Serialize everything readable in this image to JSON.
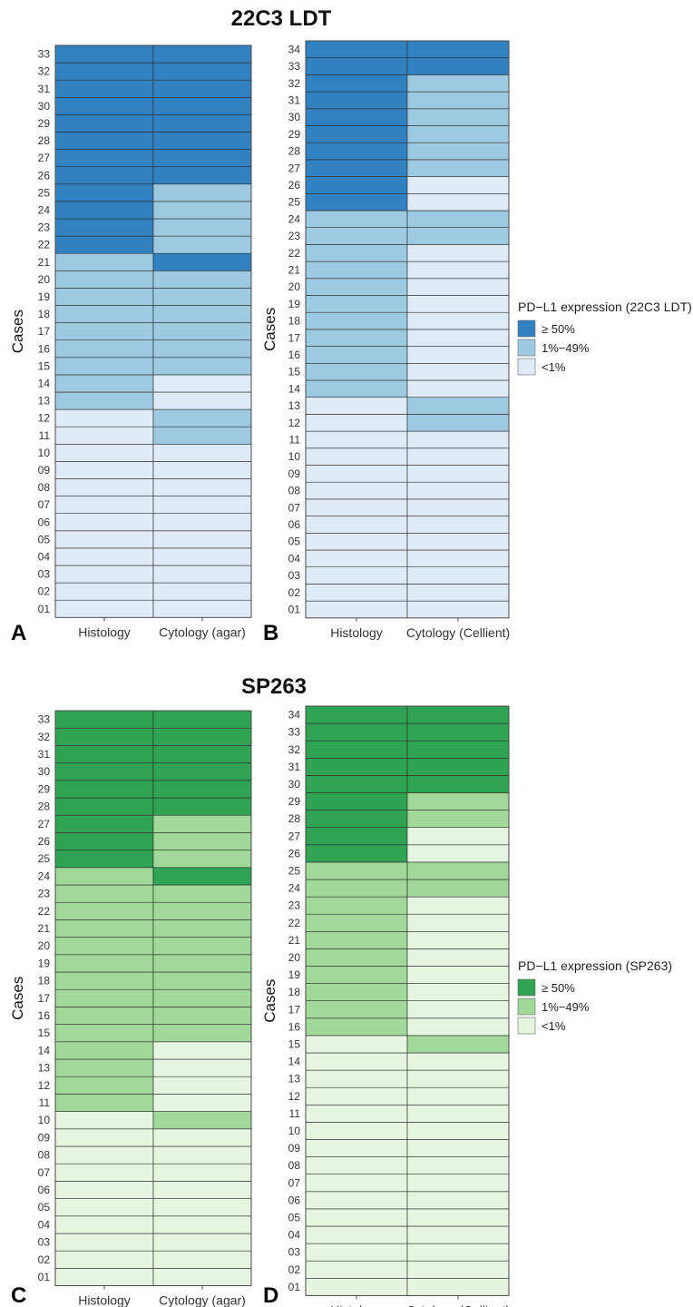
{
  "figure": {
    "title_top": "22C3 LDT",
    "title_bottom": "SP263"
  },
  "legends": [
    {
      "title": "PD−L1 expression (22C3 LDT)",
      "items": [
        {
          "label": "≥ 50%",
          "color": "#3282c2"
        },
        {
          "label": "1%−49%",
          "color": "#9ecae1"
        },
        {
          "label": "<1%",
          "color": "#deebf7"
        }
      ]
    },
    {
      "title": "PD−L1 expression (SP263)",
      "items": [
        {
          "label": "≥ 50%",
          "color": "#31a354"
        },
        {
          "label": "1%−49%",
          "color": "#a1d99b"
        },
        {
          "label": "<1%",
          "color": "#e5f5e0"
        }
      ]
    }
  ],
  "chart_data": [
    {
      "type": "heatmap",
      "panel": "A",
      "ylabel": "Cases",
      "columns": [
        "Histology",
        "Cytology (agar)"
      ],
      "rows": [
        "01",
        "02",
        "03",
        "04",
        "05",
        "06",
        "07",
        "08",
        "09",
        "10",
        "11",
        "12",
        "13",
        "14",
        "15",
        "16",
        "17",
        "18",
        "19",
        "20",
        "21",
        "22",
        "23",
        "24",
        "25",
        "26",
        "27",
        "28",
        "29",
        "30",
        "31",
        "32",
        "33"
      ],
      "palette": [
        "#deebf7",
        "#9ecae1",
        "#3282c2"
      ],
      "categories": [
        "<1%",
        "1%−49%",
        "≥ 50%"
      ],
      "values": [
        [
          0,
          0
        ],
        [
          0,
          0
        ],
        [
          0,
          0
        ],
        [
          0,
          0
        ],
        [
          0,
          0
        ],
        [
          0,
          0
        ],
        [
          0,
          0
        ],
        [
          0,
          0
        ],
        [
          0,
          0
        ],
        [
          0,
          0
        ],
        [
          0,
          1
        ],
        [
          0,
          1
        ],
        [
          1,
          0
        ],
        [
          1,
          0
        ],
        [
          1,
          1
        ],
        [
          1,
          1
        ],
        [
          1,
          1
        ],
        [
          1,
          1
        ],
        [
          1,
          1
        ],
        [
          1,
          1
        ],
        [
          1,
          2
        ],
        [
          2,
          1
        ],
        [
          2,
          1
        ],
        [
          2,
          1
        ],
        [
          2,
          1
        ],
        [
          2,
          2
        ],
        [
          2,
          2
        ],
        [
          2,
          2
        ],
        [
          2,
          2
        ],
        [
          2,
          2
        ],
        [
          2,
          2
        ],
        [
          2,
          2
        ],
        [
          2,
          2
        ]
      ]
    },
    {
      "type": "heatmap",
      "panel": "B",
      "ylabel": "Cases",
      "columns": [
        "Histology",
        "Cytology (Cellient)"
      ],
      "rows": [
        "01",
        "02",
        "03",
        "04",
        "05",
        "06",
        "07",
        "08",
        "09",
        "10",
        "11",
        "12",
        "13",
        "14",
        "15",
        "16",
        "17",
        "18",
        "19",
        "20",
        "21",
        "22",
        "23",
        "24",
        "25",
        "26",
        "27",
        "28",
        "29",
        "30",
        "31",
        "32",
        "33",
        "34"
      ],
      "palette": [
        "#deebf7",
        "#9ecae1",
        "#3282c2"
      ],
      "categories": [
        "<1%",
        "1%−49%",
        "≥ 50%"
      ],
      "values": [
        [
          0,
          0
        ],
        [
          0,
          0
        ],
        [
          0,
          0
        ],
        [
          0,
          0
        ],
        [
          0,
          0
        ],
        [
          0,
          0
        ],
        [
          0,
          0
        ],
        [
          0,
          0
        ],
        [
          0,
          0
        ],
        [
          0,
          0
        ],
        [
          0,
          0
        ],
        [
          0,
          1
        ],
        [
          0,
          1
        ],
        [
          1,
          0
        ],
        [
          1,
          0
        ],
        [
          1,
          0
        ],
        [
          1,
          0
        ],
        [
          1,
          0
        ],
        [
          1,
          0
        ],
        [
          1,
          0
        ],
        [
          1,
          0
        ],
        [
          1,
          0
        ],
        [
          1,
          1
        ],
        [
          1,
          1
        ],
        [
          2,
          0
        ],
        [
          2,
          0
        ],
        [
          2,
          1
        ],
        [
          2,
          1
        ],
        [
          2,
          1
        ],
        [
          2,
          1
        ],
        [
          2,
          1
        ],
        [
          2,
          1
        ],
        [
          2,
          2
        ],
        [
          2,
          2
        ]
      ]
    },
    {
      "type": "heatmap",
      "panel": "C",
      "ylabel": "Cases",
      "columns": [
        "Histology",
        "Cytology (agar)"
      ],
      "rows": [
        "01",
        "02",
        "03",
        "04",
        "05",
        "06",
        "07",
        "08",
        "09",
        "10",
        "11",
        "12",
        "13",
        "14",
        "15",
        "16",
        "17",
        "18",
        "19",
        "20",
        "21",
        "22",
        "23",
        "24",
        "25",
        "26",
        "27",
        "28",
        "29",
        "30",
        "31",
        "32",
        "33"
      ],
      "palette": [
        "#e5f5e0",
        "#a1d99b",
        "#31a354"
      ],
      "categories": [
        "<1%",
        "1%−49%",
        "≥ 50%"
      ],
      "values": [
        [
          0,
          0
        ],
        [
          0,
          0
        ],
        [
          0,
          0
        ],
        [
          0,
          0
        ],
        [
          0,
          0
        ],
        [
          0,
          0
        ],
        [
          0,
          0
        ],
        [
          0,
          0
        ],
        [
          0,
          0
        ],
        [
          0,
          1
        ],
        [
          1,
          0
        ],
        [
          1,
          0
        ],
        [
          1,
          0
        ],
        [
          1,
          0
        ],
        [
          1,
          1
        ],
        [
          1,
          1
        ],
        [
          1,
          1
        ],
        [
          1,
          1
        ],
        [
          1,
          1
        ],
        [
          1,
          1
        ],
        [
          1,
          1
        ],
        [
          1,
          1
        ],
        [
          1,
          1
        ],
        [
          1,
          2
        ],
        [
          2,
          1
        ],
        [
          2,
          1
        ],
        [
          2,
          1
        ],
        [
          2,
          2
        ],
        [
          2,
          2
        ],
        [
          2,
          2
        ],
        [
          2,
          2
        ],
        [
          2,
          2
        ],
        [
          2,
          2
        ]
      ]
    },
    {
      "type": "heatmap",
      "panel": "D",
      "ylabel": "Cases",
      "columns": [
        "Histology",
        "Cytology (Cellient)"
      ],
      "rows": [
        "01",
        "02",
        "03",
        "04",
        "05",
        "06",
        "07",
        "08",
        "09",
        "10",
        "11",
        "12",
        "13",
        "14",
        "15",
        "16",
        "17",
        "18",
        "19",
        "20",
        "21",
        "22",
        "23",
        "24",
        "25",
        "26",
        "27",
        "28",
        "29",
        "30",
        "31",
        "32",
        "33",
        "34"
      ],
      "palette": [
        "#e5f5e0",
        "#a1d99b",
        "#31a354"
      ],
      "categories": [
        "<1%",
        "1%−49%",
        "≥ 50%"
      ],
      "values": [
        [
          0,
          0
        ],
        [
          0,
          0
        ],
        [
          0,
          0
        ],
        [
          0,
          0
        ],
        [
          0,
          0
        ],
        [
          0,
          0
        ],
        [
          0,
          0
        ],
        [
          0,
          0
        ],
        [
          0,
          0
        ],
        [
          0,
          0
        ],
        [
          0,
          0
        ],
        [
          0,
          0
        ],
        [
          0,
          0
        ],
        [
          0,
          0
        ],
        [
          0,
          1
        ],
        [
          1,
          0
        ],
        [
          1,
          0
        ],
        [
          1,
          0
        ],
        [
          1,
          0
        ],
        [
          1,
          0
        ],
        [
          1,
          0
        ],
        [
          1,
          0
        ],
        [
          1,
          0
        ],
        [
          1,
          1
        ],
        [
          1,
          1
        ],
        [
          2,
          0
        ],
        [
          2,
          0
        ],
        [
          2,
          1
        ],
        [
          2,
          1
        ],
        [
          2,
          2
        ],
        [
          2,
          2
        ],
        [
          2,
          2
        ],
        [
          2,
          2
        ],
        [
          2,
          2
        ]
      ]
    }
  ]
}
